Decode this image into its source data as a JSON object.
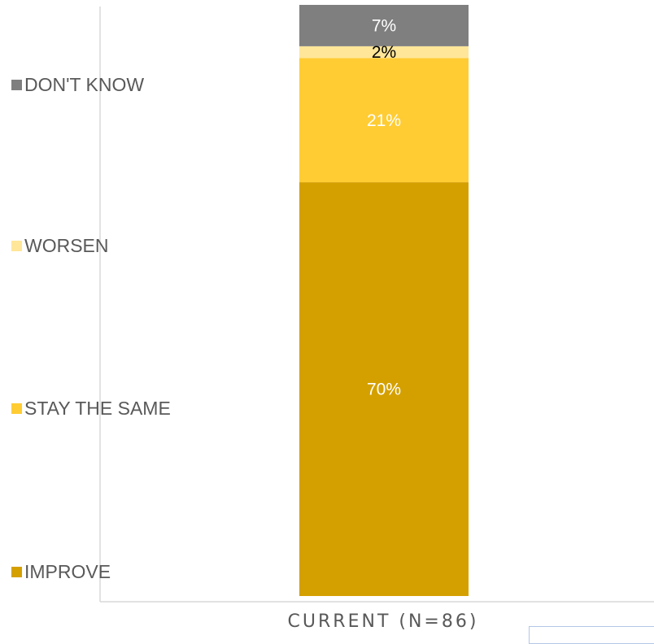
{
  "chart_data": {
    "type": "bar",
    "stacked": true,
    "categories": [
      "CURRENT (N=86)"
    ],
    "series": [
      {
        "name": "IMPROVE",
        "values": [
          70
        ],
        "label": "70%",
        "color": "#D4A000",
        "label_color": "#FFFFFF"
      },
      {
        "name": "STAY THE SAME",
        "values": [
          21
        ],
        "label": "21%",
        "color": "#FFCC33",
        "label_color": "#FFFFFF"
      },
      {
        "name": "WORSEN",
        "values": [
          2
        ],
        "label": "2%",
        "color": "#FFE699",
        "label_color": "#000000"
      },
      {
        "name": "DON'T KNOW",
        "values": [
          7
        ],
        "label": "7%",
        "color": "#7F7F7F",
        "label_color": "#FFFFFF"
      }
    ],
    "ylim": [
      0,
      100
    ],
    "grid": false,
    "legend_position": "left",
    "legend_order": [
      "DON'T KNOW",
      "WORSEN",
      "STAY THE SAME",
      "IMPROVE"
    ]
  }
}
